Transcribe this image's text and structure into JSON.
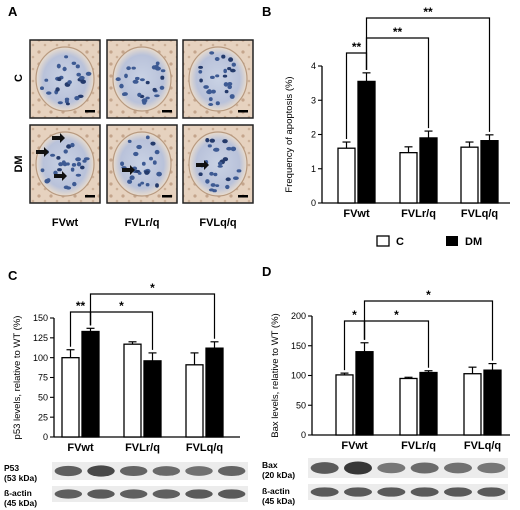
{
  "panel_letters": [
    "A",
    "B",
    "C",
    "D"
  ],
  "micrograph": {
    "row_labels": [
      "C",
      "DM"
    ],
    "column_labels": [
      "FVwt",
      "FVLr/q",
      "FVLq/q"
    ]
  },
  "western_blots": {
    "C": [
      "P53",
      "(53 kDa)",
      "ß-actin",
      "(45 kDa)"
    ],
    "D": [
      "Bax",
      "(20 kDa)",
      "ß-actin",
      "(45 kDa)"
    ]
  },
  "colors": {
    "control_bar": "#ffffff",
    "dm_bar": "#000000",
    "axis": "#000000"
  },
  "chart_data": [
    {
      "panel": "B",
      "type": "bar",
      "categories": [
        "FVwt",
        "FVLr/q",
        "FVLq/q"
      ],
      "series": [
        {
          "name": "C",
          "values": [
            1.6,
            1.47,
            1.63
          ],
          "errors": [
            0.18,
            0.17,
            0.15
          ]
        },
        {
          "name": "DM",
          "values": [
            3.55,
            1.9,
            1.82
          ],
          "errors": [
            0.25,
            0.2,
            0.17
          ]
        }
      ],
      "ylabel": "Frequency of apoptosis  (%)",
      "ylim": [
        0,
        4
      ],
      "yticks": [
        0,
        1,
        2,
        3,
        4
      ],
      "legend_position": "bottom",
      "significance": [
        {
          "label": "**",
          "from": "FVwt C",
          "to": "FVwt DM"
        },
        {
          "label": "**",
          "from": "FVwt DM",
          "to": "FVLr/q DM"
        },
        {
          "label": "**",
          "from": "FVwt DM",
          "to": "FVLq/q DM"
        }
      ]
    },
    {
      "panel": "C",
      "type": "bar",
      "categories": [
        "FVwt",
        "FVLr/q",
        "FVLq/q"
      ],
      "series": [
        {
          "name": "C",
          "values": [
            100,
            117,
            91
          ],
          "errors": [
            10,
            3,
            15
          ]
        },
        {
          "name": "DM",
          "values": [
            133,
            96,
            112
          ],
          "errors": [
            4,
            10,
            8
          ]
        }
      ],
      "ylabel": "p53 levels, relative to WT (%)",
      "ylim": [
        0,
        150
      ],
      "yticks": [
        0,
        25,
        50,
        75,
        100,
        125,
        150
      ],
      "significance": [
        {
          "label": "**",
          "from": "FVwt C",
          "to": "FVwt DM"
        },
        {
          "label": "*",
          "from": "FVwt DM",
          "to": "FVLr/q DM"
        },
        {
          "label": "*",
          "from": "FVwt DM",
          "to": "FVLq/q DM"
        }
      ]
    },
    {
      "panel": "D",
      "type": "bar",
      "categories": [
        "FVwt",
        "FVLr/q",
        "FVLq/q"
      ],
      "series": [
        {
          "name": "C",
          "values": [
            101,
            95,
            103
          ],
          "errors": [
            3,
            2,
            11
          ]
        },
        {
          "name": "DM",
          "values": [
            140,
            105,
            109
          ],
          "errors": [
            15,
            3,
            11
          ]
        }
      ],
      "ylabel": "Bax levels, relative to WT (%)",
      "ylim": [
        0,
        200
      ],
      "yticks": [
        0,
        50,
        100,
        150,
        200
      ],
      "significance": [
        {
          "label": "*",
          "from": "FVwt C",
          "to": "FVwt DM"
        },
        {
          "label": "*",
          "from": "FVwt DM",
          "to": "FVLr/q DM"
        },
        {
          "label": "*",
          "from": "FVwt DM",
          "to": "FVLq/q DM"
        }
      ]
    }
  ]
}
